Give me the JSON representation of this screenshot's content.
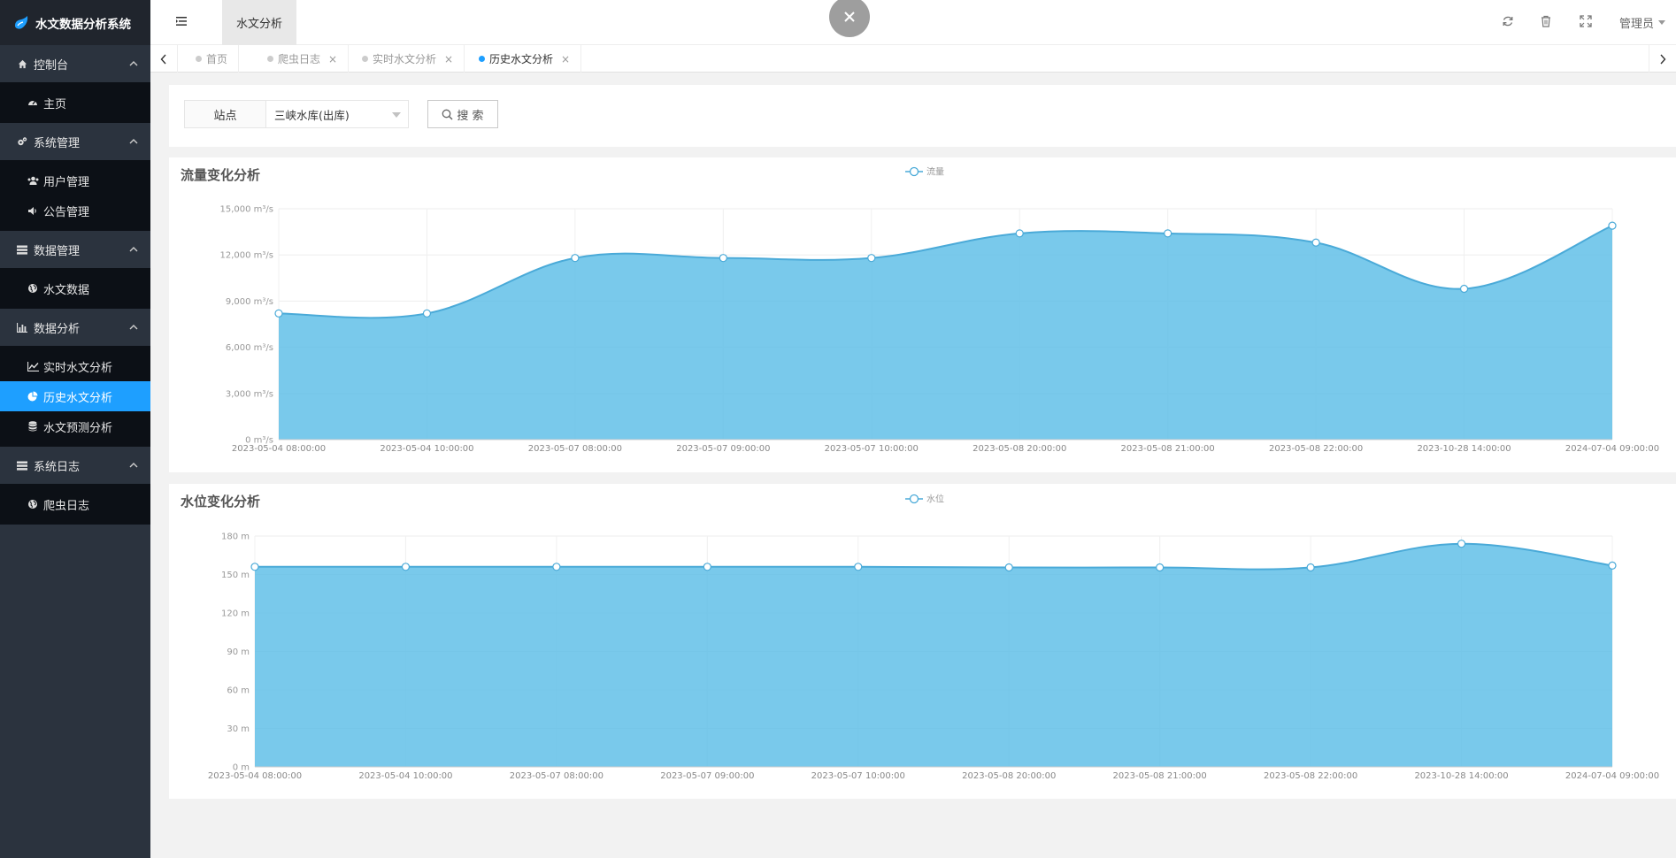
{
  "app": {
    "title": "水文数据分析系统"
  },
  "sidebar": {
    "groups": [
      {
        "label": "控制台",
        "icon": "home-icon",
        "items": [
          {
            "label": "主页",
            "icon": "dashboard-icon",
            "active": false
          }
        ]
      },
      {
        "label": "系统管理",
        "icon": "cogs-icon",
        "items": [
          {
            "label": "用户管理",
            "icon": "users-icon",
            "active": false
          },
          {
            "label": "公告管理",
            "icon": "volume-icon",
            "active": false
          }
        ]
      },
      {
        "label": "数据管理",
        "icon": "list-icon",
        "items": [
          {
            "label": "水文数据",
            "icon": "globe-icon",
            "active": false
          }
        ]
      },
      {
        "label": "数据分析",
        "icon": "bar-chart-icon",
        "items": [
          {
            "label": "实时水文分析",
            "icon": "line-chart-icon",
            "active": false
          },
          {
            "label": "历史水文分析",
            "icon": "pie-chart-icon",
            "active": true
          },
          {
            "label": "水文预测分析",
            "icon": "database-icon",
            "active": false
          }
        ]
      },
      {
        "label": "系统日志",
        "icon": "list-icon",
        "items": [
          {
            "label": "爬虫日志",
            "icon": "globe-icon",
            "active": false
          }
        ]
      }
    ]
  },
  "topbar": {
    "tab_label": "水文分析",
    "user_label": "管理员",
    "icons": [
      "refresh-icon",
      "trash-icon",
      "fullscreen-icon"
    ]
  },
  "tabs": [
    {
      "label": "首页",
      "closable": false,
      "active": false
    },
    {
      "label": "爬虫日志",
      "closable": true,
      "active": false
    },
    {
      "label": "实时水文分析",
      "closable": true,
      "active": false
    },
    {
      "label": "历史水文分析",
      "closable": true,
      "active": true
    }
  ],
  "search": {
    "station_label": "站点",
    "station_value": "三峡水库(出库)",
    "button_label": "搜 索"
  },
  "colors": {
    "accent": "#1e9fff",
    "area_fill": "#5bbde6",
    "area_line": "#4aaad8",
    "sidebar_bg": "#2b333e",
    "submenu_bg": "#0c1016"
  },
  "chart_data": [
    {
      "type": "area",
      "title": "流量变化分析",
      "legend": [
        "流量"
      ],
      "legend_position": "top-center",
      "grid": true,
      "categories": [
        "2023-05-04 08:00:00",
        "2023-05-04 10:00:00",
        "2023-05-07 08:00:00",
        "2023-05-07 09:00:00",
        "2023-05-07 10:00:00",
        "2023-05-08 20:00:00",
        "2023-05-08 21:00:00",
        "2023-05-08 22:00:00",
        "2023-10-28 14:00:00",
        "2024-07-04 09:00:00"
      ],
      "series": [
        {
          "name": "流量",
          "values": [
            8200,
            8200,
            11800,
            11800,
            11800,
            13400,
            13400,
            12800,
            9800,
            13900
          ]
        }
      ],
      "yticks": [
        "0 m³/s",
        "3,000 m³/s",
        "6,000 m³/s",
        "9,000 m³/s",
        "12,000 m³/s",
        "15,000 m³/s"
      ],
      "ylim": [
        0,
        15000
      ]
    },
    {
      "type": "area",
      "title": "水位变化分析",
      "legend": [
        "水位"
      ],
      "legend_position": "top-center",
      "grid": true,
      "categories": [
        "2023-05-04 08:00:00",
        "2023-05-04 10:00:00",
        "2023-05-07 08:00:00",
        "2023-05-07 09:00:00",
        "2023-05-07 10:00:00",
        "2023-05-08 20:00:00",
        "2023-05-08 21:00:00",
        "2023-05-08 22:00:00",
        "2023-10-28 14:00:00",
        "2024-07-04 09:00:00"
      ],
      "series": [
        {
          "name": "水位",
          "values": [
            156,
            156,
            156,
            156,
            156,
            155.5,
            155.5,
            155.5,
            174,
            157
          ]
        }
      ],
      "yticks": [
        "0 m",
        "30 m",
        "60 m",
        "90 m",
        "120 m",
        "150 m",
        "180 m"
      ],
      "ylim": [
        0,
        180
      ]
    }
  ]
}
